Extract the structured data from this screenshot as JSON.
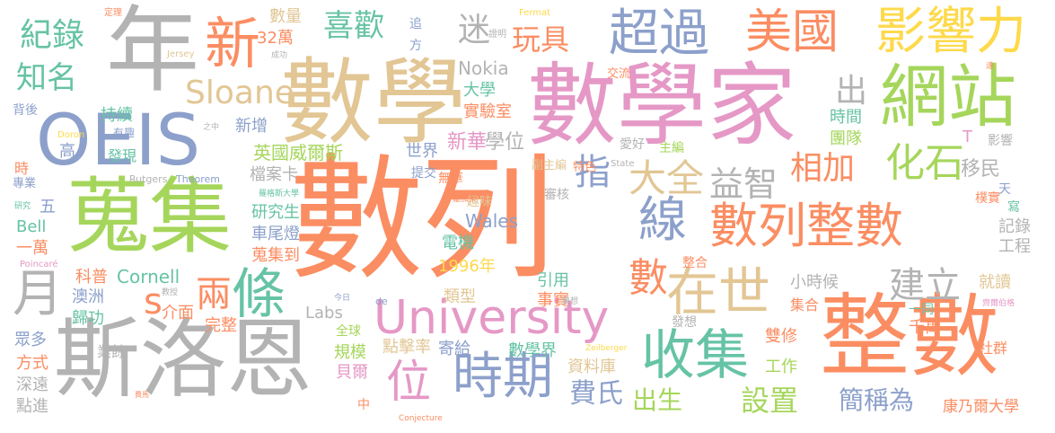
{
  "palette": {
    "orange": "#f4a37b",
    "pink": "#e598c6",
    "blue": "#8ca0cb",
    "green": "#a5d65b",
    "teal": "#66c3a5",
    "sand": "#e2c694",
    "gray": "#b3b3b3",
    "yellow": "#fed94a",
    "darkorange": "#fb8d62"
  },
  "words": {
    "w_shulie": "數列",
    "w_shuxue": "數學",
    "w_shuxuejia": "數學家",
    "w_wanji": "蒐集",
    "w_siluoen": "斯洛恩",
    "w_zhengshu": "整數",
    "w_zhengshu_v": "整數",
    "w_oeis": "OEIS",
    "w_nian": "年",
    "w_wangzhan": "網站",
    "w_university": "University",
    "w_shiqi": "時期",
    "w_shouji": "收集",
    "w_chaoguo": "超過",
    "w_meiguo": "美國",
    "w_yingxiangli": "影響力",
    "w_xin": "新",
    "w_shuliezhengshu": "數列整數",
    "w_xian": "線",
    "w_tiao": "條",
    "w_zaishi": "在世",
    "w_yue": "月",
    "w_wei": "位",
    "w_xihuan": "喜歡",
    "w_wanju": "玩具",
    "w_jilu": "紀錄",
    "w_zhiming": "知名",
    "w_mi": "迷",
    "w_sloane": "Sloane",
    "w_daquan": "大全",
    "w_yizhi": "益智",
    "w_xiangjia": "相加",
    "w_huashi": "化石",
    "w_jianli": "建立",
    "w_zhi": "指",
    "w_chu": "出",
    "w_liang": "兩",
    "w_s": "s",
    "w_shu_small": "數",
    "w_feishi": "費氏",
    "w_chusheng": "出生",
    "w_shezhi": "設置",
    "w_jianchengwei": "簡稱為",
    "w_kangnaier": "康乃爾大學",
    "w_yimin": "移民",
    "w_shijian": "時間",
    "w_tuandui": "團隊",
    "w_daxue": "大學",
    "w_shiyanshi": "實驗室",
    "w_nokia": "Nokia",
    "w_xueweiv": "學位",
    "w_xinhua": "新華",
    "w_shijie": "世界",
    "w_yingguo": "英國威爾斯",
    "w_dangan": "檔案卡",
    "w_yanjiusheng": "研究生",
    "w_cheweideng": "車尾燈",
    "w_wanjidao": "蒐集到",
    "w_wales": "Wales",
    "w_dianji": "電機",
    "w_1996": "1996年",
    "w_leixing": "類型",
    "w_yinyong": "引用",
    "w_shishi": "事實",
    "w_cornell": "Cornell",
    "w_aozhou": "澳洲",
    "w_guigong": "歸功",
    "w_labs": "Labs",
    "w_jiemian": "介面",
    "w_wanzheng": "完整",
    "w_kepu": "科普",
    "w_yiwan": "一萬",
    "w_bell": "Bell",
    "w_wu": "五",
    "w_guimo": "規模",
    "w_dianjilv": "點擊率",
    "w_jigei": "寄給",
    "w_shuxuejie": "數學界",
    "w_ziliaoku": "資料庫",
    "w_beier": "貝爾",
    "w_shuangxiu": "雙修",
    "w_gongzuo": "工作",
    "w_qianwan": "千萬",
    "w_shequn": "社群",
    "w_jiuke": "就讀",
    "w_gongcheng": "工程",
    "w_jilu2": "記錄",
    "w_xiaoshihou": "小時候",
    "w_jihe": "集合",
    "w_faxiang": "發想",
    "w_quanqiu": "全球",
    "w_yeyu": "業餘",
    "w_zhongduo": "眾多",
    "w_fangshi": "方式",
    "w_shenyuan": "深遠",
    "w_dianjin": "點進",
    "w_chixu": "持續",
    "w_xinzeng": "新增",
    "w_faxian": "發現",
    "w_gao": "高",
    "w_youqu": "有趣",
    "w_shi": "時",
    "w_beihou": "背後",
    "w_zhuanye": "專業",
    "w_shuliang": "數量",
    "w_32wan": "32萬",
    "w_zhui": "追",
    "w_fang": "方",
    "w_zhuangbian": "主編",
    "w_aihao": "愛好",
    "w_fuzhubian": "副主編",
    "w_tijiao": "提交",
    "w_tese": "特色",
    "w_quwei": "趣味",
    "w_shenghe": "審核",
    "w_wuhua": "無華",
    "w_pushi": "樸實",
    "w_tian": "天",
    "w_xie": "寫",
    "w_yitong": "一同",
    "w_yingxiang2": "影響",
    "w_zhongdou": "中",
    "w_T": "T",
    "w_zhenghe": "整合",
    "w_jiaoliu": "交流",
    "w_dingli": "定理",
    "w_fermat": "Fermat",
    "w_jersey": "Jersey",
    "w_zhengming": "證明",
    "w_chenggong": "成功",
    "w_doron": "Doron",
    "w_zhizhong": "之中",
    "w_rutgers": "Rutgers",
    "w_theorem": "Theorem",
    "w_state": "State",
    "w_luogesi": "羅格斯大學",
    "w_yanjiu": "研究",
    "w_poincare": "Poincaré",
    "w_jiaoshou": "教授",
    "w_jinri": "今日",
    "w_de": "de",
    "w_caixiang": "猜想",
    "w_moujialai": "龐加萊",
    "w_zeilberger": "Zeilberger",
    "w_conjecture": "Conjecture",
    "w_feima": "費馬",
    "w_zhiming2": "遠",
    "w_gebo": "齊爾伯格"
  }
}
